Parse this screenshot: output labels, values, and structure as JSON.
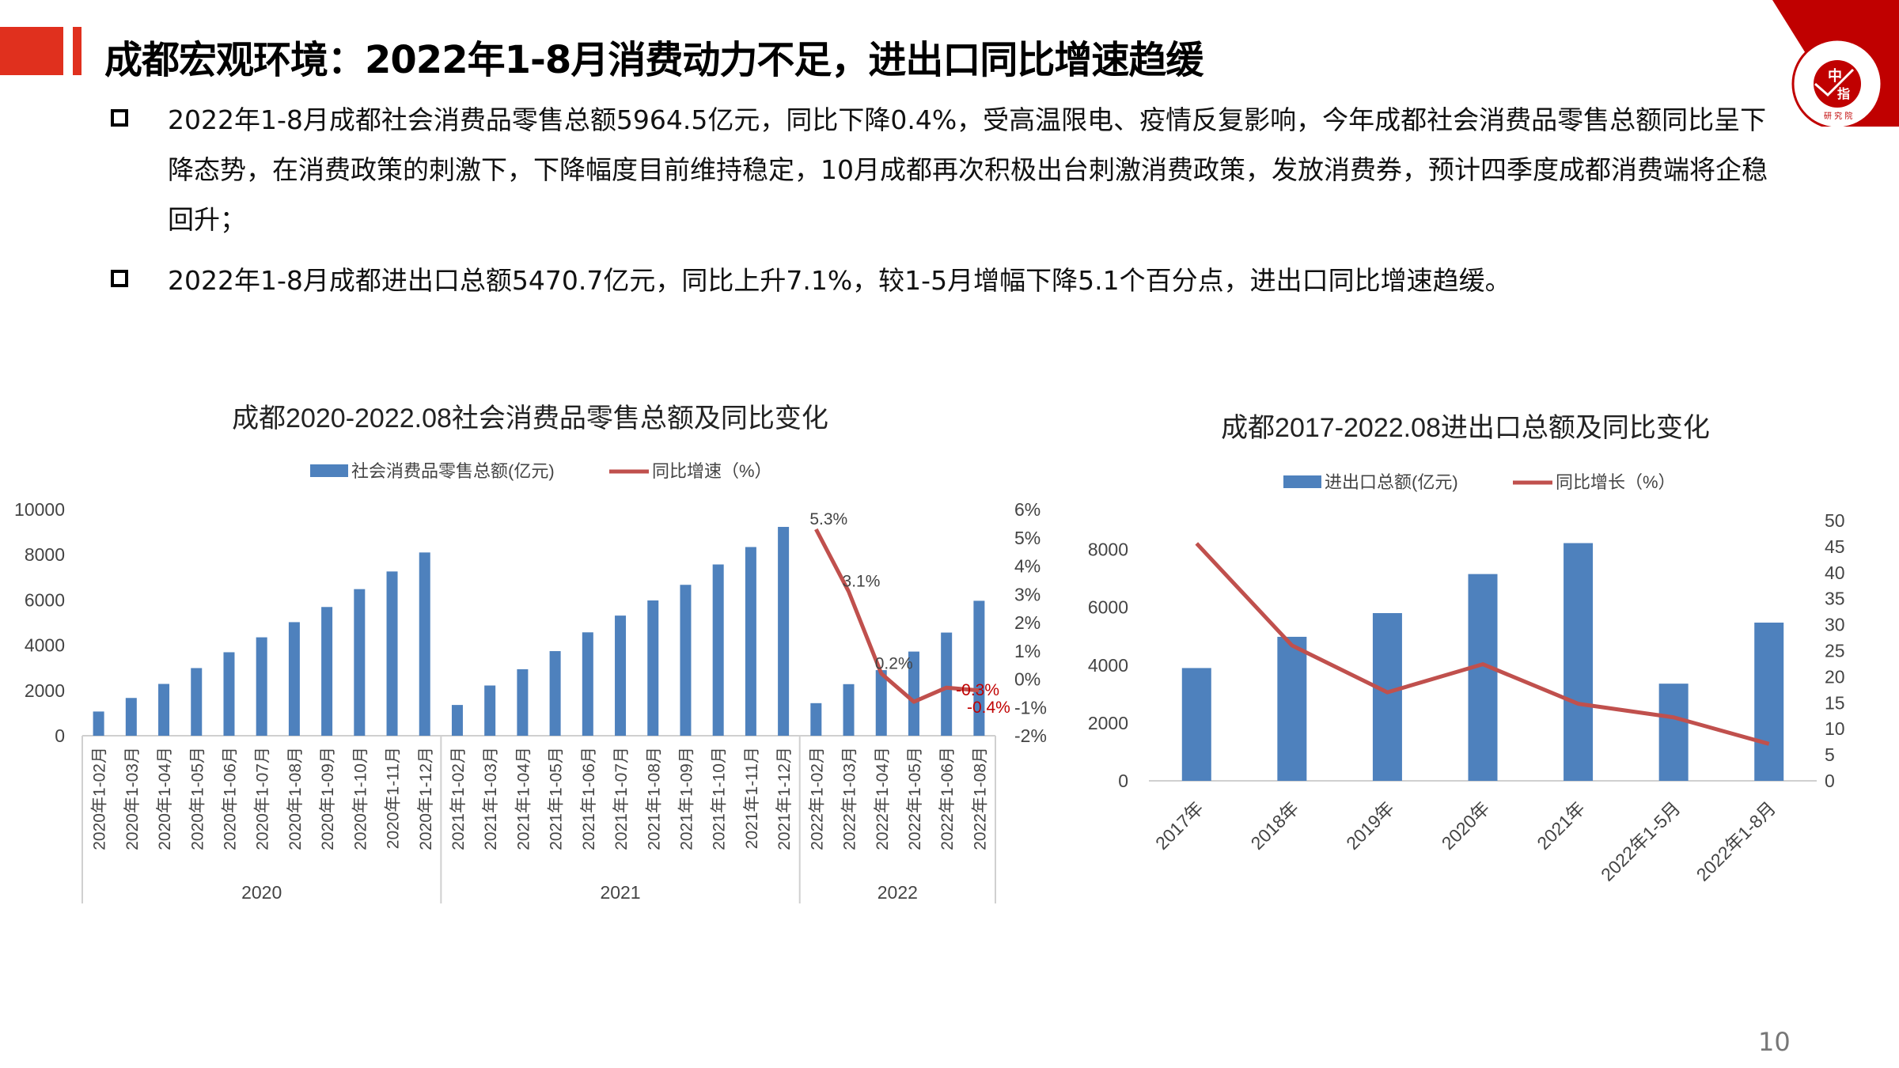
{
  "header": {
    "title": "成都宏观环境：2022年1-8月消费动力不足，进出口同比增速趋缓"
  },
  "logo": {
    "text": "CHINA INDEX ACADEMY 中指 研究院"
  },
  "bullets": [
    "2022年1-8月成都社会消费品零售总额5964.5亿元，同比下降0.4%，受高温限电、疫情反复影响，今年成都社会消费品零售总额同比呈下降态势，在消费政策的刺激下，下降幅度目前维持稳定，10月成都再次积极出台刺激消费政策，发放消费券，预计四季度成都消费端将企稳回升；",
    "2022年1-8月成都进出口总额5470.7亿元，同比上升7.1%，较1-5月增幅下降5.1个百分点，进出口同比增速趋缓。"
  ],
  "page_number": "10",
  "colors": {
    "bar": "#4e81bd",
    "line": "#c0504d",
    "accent": "#e0301e",
    "label_red": "#c00000"
  },
  "chart_data": [
    {
      "type": "bar",
      "title": "成都2020-2022.08社会消费品零售总额及同比变化",
      "legend": [
        "社会消费品零售总额(亿元)",
        "同比增速（%）"
      ],
      "legend_position": "top",
      "categories": [
        "2020年1-02月",
        "2020年1-03月",
        "2020年1-04月",
        "2020年1-05月",
        "2020年1-06月",
        "2020年1-07月",
        "2020年1-08月",
        "2020年1-09月",
        "2020年1-10月",
        "2020年1-11月",
        "2020年1-12月",
        "2021年1-02月",
        "2021年1-03月",
        "2021年1-04月",
        "2021年1-05月",
        "2021年1-06月",
        "2021年1-07月",
        "2021年1-08月",
        "2021年1-09月",
        "2021年1-10月",
        "2021年1-11月",
        "2021年1-12月",
        "2022年1-02月",
        "2022年1-03月",
        "2022年1-04月",
        "2022年1-05月",
        "2022年1-06月",
        "2022年1-08月"
      ],
      "groups": [
        {
          "label": "2020",
          "count": 11
        },
        {
          "label": "2021",
          "count": 11
        },
        {
          "label": "2022",
          "count": 6
        }
      ],
      "series": [
        {
          "name": "社会消费品零售总额(亿元)",
          "axis": "left",
          "values": [
            1070,
            1670,
            2290,
            2990,
            3690,
            4350,
            5020,
            5690,
            6480,
            7260,
            8100,
            1360,
            2220,
            2940,
            3740,
            4570,
            5310,
            5980,
            6670,
            7570,
            8340,
            9230,
            1440,
            2280,
            2900,
            3720,
            4560,
            5964.5
          ]
        },
        {
          "name": "同比增速（%）",
          "axis": "right",
          "type": "line",
          "values": [
            null,
            null,
            null,
            null,
            null,
            null,
            null,
            null,
            null,
            null,
            null,
            null,
            null,
            null,
            null,
            null,
            null,
            null,
            null,
            null,
            null,
            null,
            5.3,
            3.1,
            0.2,
            -0.8,
            -0.3,
            -0.4
          ],
          "labels": [
            null,
            null,
            null,
            null,
            null,
            null,
            null,
            null,
            null,
            null,
            null,
            null,
            null,
            null,
            null,
            null,
            null,
            null,
            null,
            null,
            null,
            null,
            "5.3%",
            "3.1%",
            "0.2%",
            null,
            "-0.3%",
            "-0.4%"
          ]
        }
      ],
      "ylim": [
        0,
        10000
      ],
      "yticks": [
        "0",
        "2000",
        "4000",
        "6000",
        "8000",
        "10000"
      ],
      "y2lim": [
        -2,
        6
      ],
      "y2ticks": [
        "-2%",
        "-1%",
        "0%",
        "1%",
        "2%",
        "3%",
        "4%",
        "5%",
        "6%"
      ]
    },
    {
      "type": "bar",
      "title": "成都2017-2022.08进出口总额及同比变化",
      "legend": [
        "进出口总额(亿元)",
        "同比增长（%）"
      ],
      "legend_position": "top",
      "categories": [
        "2017年",
        "2018年",
        "2019年",
        "2020年",
        "2021年",
        "2022年1-5月",
        "2022年1-8月"
      ],
      "series": [
        {
          "name": "进出口总额(亿元)",
          "axis": "left",
          "values": [
            3900,
            4980,
            5800,
            7150,
            8220,
            3360,
            5470.7
          ]
        },
        {
          "name": "同比增长（%）",
          "axis": "right",
          "type": "line",
          "values": [
            45.6,
            26.0,
            17.0,
            22.4,
            14.8,
            12.2,
            7.1
          ]
        }
      ],
      "ylim": [
        0,
        9000
      ],
      "yticks": [
        "0",
        "2000",
        "4000",
        "6000",
        "8000"
      ],
      "y2lim": [
        0,
        50
      ],
      "y2ticks": [
        "0",
        "5",
        "10",
        "15",
        "20",
        "25",
        "30",
        "35",
        "40",
        "45",
        "50"
      ]
    }
  ]
}
